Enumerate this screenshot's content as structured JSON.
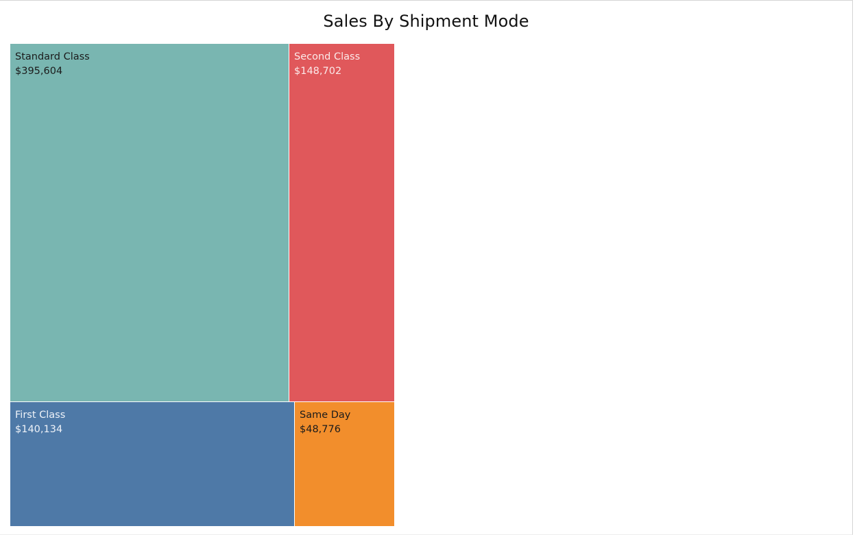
{
  "title": "Sales By Shipment Mode",
  "chart_data": {
    "type": "treemap",
    "title": "Sales By Shipment Mode",
    "items": [
      {
        "name": "Standard Class",
        "value": 395604,
        "label": "$395,604",
        "color": "#79b6b1",
        "text_color": "#1b1b1b"
      },
      {
        "name": "Second Class",
        "value": 148702,
        "label": "$148,702",
        "color": "#e0585b",
        "text_color": "#fbeaea"
      },
      {
        "name": "First Class",
        "value": 140134,
        "label": "$140,134",
        "color": "#4e79a7",
        "text_color": "#eef2f8"
      },
      {
        "name": "Same Day",
        "value": 48776,
        "label": "$48,776",
        "color": "#f28e2c",
        "text_color": "#1b1b1b"
      }
    ]
  }
}
